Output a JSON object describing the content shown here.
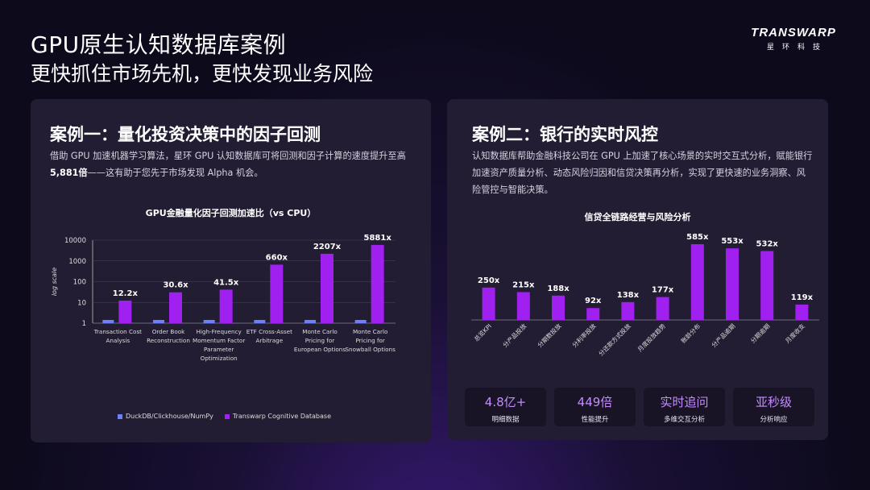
{
  "header": {
    "title": "GPU原生认知数据库案例",
    "subtitle": "更快抓住市场先机，更快发现业务风险",
    "logo_main": "TRANSWARP",
    "logo_sub": "星环科技"
  },
  "case1": {
    "title": "案例一：量化投资决策中的因子回测",
    "desc_line1": "借助 GPU 加速机器学习算法，星环 GPU 认知数据库可将回测和因子计算的速度提升至高",
    "desc_bold": "5,881倍",
    "desc_rest": "——这有助于您先于市场发现 Alpha 机会。"
  },
  "case2": {
    "title": "案例二：银行的实时风控",
    "desc_line1": "认知数据库帮助金融科技公司在 GPU 上加速了核心场景的实时交互式分析，赋能银行",
    "desc_line2": "加速资产质量分析、动态风险归因和信贷决策再分析，实现了更快速的业务洞察、风",
    "desc_line3": "险管控与智能决策。",
    "stats": [
      {
        "value": "4.8亿+",
        "label": "明细数据"
      },
      {
        "value": "449倍",
        "label": "性能提升"
      },
      {
        "value": "实时追问",
        "label": "多维交互分析"
      },
      {
        "value": "亚秒级",
        "label": "分析响应"
      }
    ]
  },
  "chart_data": [
    {
      "type": "bar",
      "title": "GPU金融量化因子回测加速比（vs CPU）",
      "ylabel": "log scale",
      "yscale": "log",
      "ylim": [
        1,
        10000
      ],
      "yticks": [
        "1",
        "10",
        "100",
        "1000",
        "10000"
      ],
      "categories": [
        [
          "Transaction Cost",
          "Analysis"
        ],
        [
          "Order Book",
          "Reconstruction"
        ],
        [
          "High-Frequency",
          "Momentum Factor",
          "Parameter",
          "Optimization"
        ],
        [
          "ETF Cross-Asset",
          "Arbitrage"
        ],
        [
          "Monte Carlo",
          "Pricing for",
          "European Options"
        ],
        [
          "Monte Carlo",
          "Pricing for",
          "Snowball Options"
        ]
      ],
      "series": [
        {
          "name": "DuckDB/Clickhouse/NumPy",
          "color": "#6b7fff",
          "values": [
            1,
            1,
            1,
            1,
            1,
            1
          ]
        },
        {
          "name": "Transwarp Cognitive Database",
          "color": "#a020f0",
          "values": [
            12.2,
            30.6,
            41.5,
            660,
            2207,
            5881
          ]
        }
      ],
      "data_labels": [
        "12.2x",
        "30.6x",
        "41.5x",
        "660x",
        "2207x",
        "5881x"
      ],
      "legend": "bottom"
    },
    {
      "type": "bar",
      "title": "信贷全链路经营与风险分析",
      "categories": [
        "总览KPI",
        "分产品投放",
        "分期数投放",
        "分利率投放",
        "分还款方式投放",
        "月度投放趋势",
        "账龄分布",
        "分产品逾期",
        "分期逾期",
        "月度收支"
      ],
      "values": [
        250,
        215,
        188,
        92,
        138,
        177,
        585,
        553,
        532,
        119
      ],
      "data_labels": [
        "250x",
        "215x",
        "188x",
        "92x",
        "138x",
        "177x",
        "585x",
        "553x",
        "532x",
        "119x"
      ],
      "color": "#a020f0"
    }
  ]
}
